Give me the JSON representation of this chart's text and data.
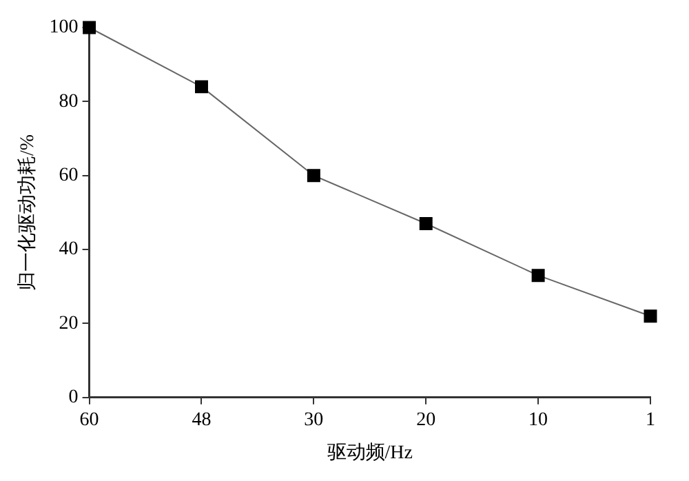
{
  "chart_data": {
    "type": "line",
    "xlabel": "驱动频/Hz",
    "ylabel": "归一化驱动功耗/%",
    "categories": [
      "60",
      "48",
      "30",
      "20",
      "10",
      "1"
    ],
    "series": [
      {
        "color": "#000000",
        "values": [
          100,
          84,
          60,
          47,
          33,
          22
        ]
      }
    ],
    "ylim": [
      0,
      100
    ],
    "yticks": [
      0,
      20,
      40,
      60,
      80,
      100
    ],
    "grid": false,
    "legend": false,
    "marker": "square",
    "line_style": "solid"
  }
}
